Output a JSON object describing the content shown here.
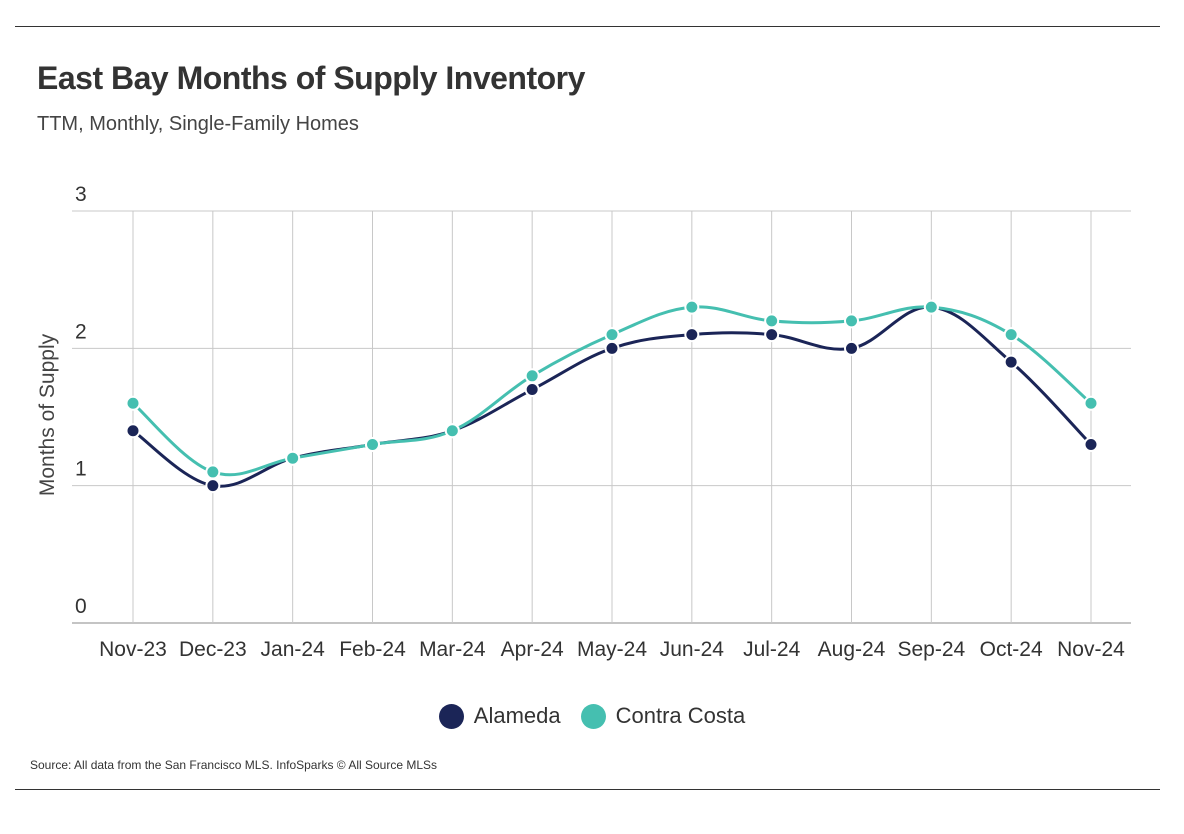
{
  "title": "East Bay Months of Supply Inventory",
  "subtitle": "TTM, Monthly, Single-Family Homes",
  "source": "Source:  All data from the San Francisco MLS. InfoSparks © All Source MLSs",
  "colors": {
    "alameda": "#1b2557",
    "contra_costa": "#45bfb0",
    "grid": "#c8c8c8",
    "rule": "#333333"
  },
  "chart_data": {
    "type": "line",
    "categories": [
      "Nov-23",
      "Dec-23",
      "Jan-24",
      "Feb-24",
      "Mar-24",
      "Apr-24",
      "May-24",
      "Jun-24",
      "Jul-24",
      "Aug-24",
      "Sep-24",
      "Oct-24",
      "Nov-24"
    ],
    "series": [
      {
        "name": "Alameda",
        "values": [
          1.4,
          1.0,
          1.2,
          1.3,
          1.4,
          1.7,
          2.0,
          2.1,
          2.1,
          2.0,
          2.3,
          1.9,
          1.3
        ]
      },
      {
        "name": "Contra Costa",
        "values": [
          1.6,
          1.1,
          1.2,
          1.3,
          1.4,
          1.8,
          2.1,
          2.3,
          2.2,
          2.2,
          2.3,
          2.1,
          1.6
        ]
      }
    ],
    "ylabel": "Months of Supply",
    "xlabel": "",
    "ylim": [
      0,
      3
    ],
    "yticks": [
      "0",
      "1",
      "2",
      "3"
    ],
    "grid": true,
    "legend": "bottom-center"
  }
}
